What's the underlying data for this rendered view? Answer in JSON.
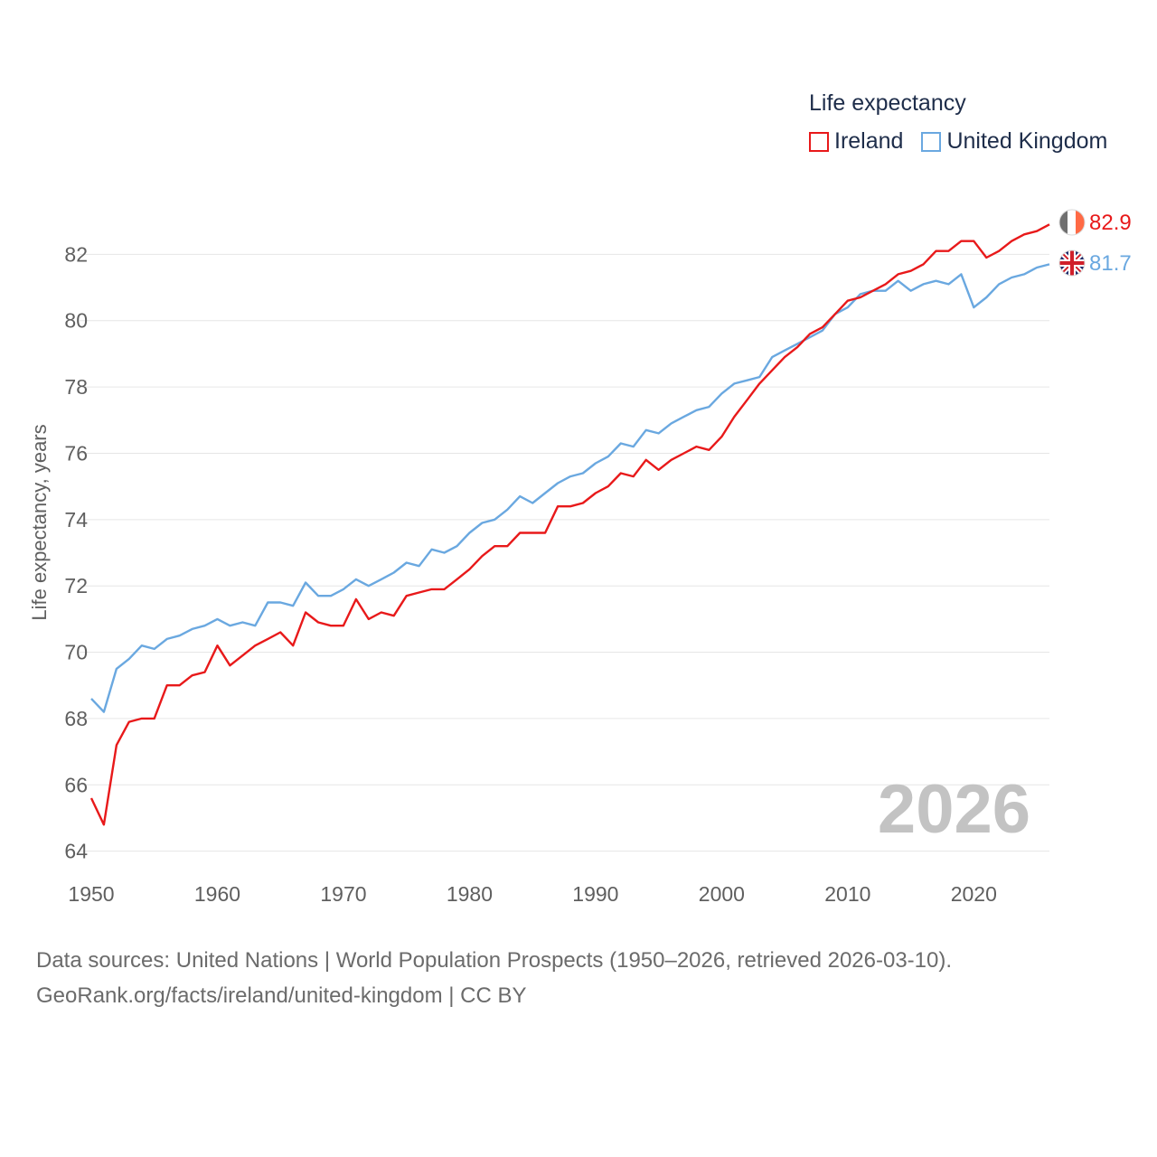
{
  "legend": {
    "title": "Life expectancy",
    "ireland_label": "Ireland",
    "uk_label": "United Kingdom"
  },
  "source": {
    "line1": "Data sources: United Nations | World Population Prospects (1950–2026, retrieved 2026-03-10).",
    "line2": "GeoRank.org/facts/ireland/united-kingdom | CC BY"
  },
  "colors": {
    "ireland": "#e8191a",
    "uk": "#6aa8e0",
    "grid": "#e6e6e6"
  },
  "chart_data": {
    "type": "line",
    "title": "Life expectancy",
    "xlabel": "",
    "ylabel": "Life expectancy, years",
    "xlim": [
      1950,
      2026
    ],
    "ylim": [
      63.5,
      83.4
    ],
    "xticks": [
      1950,
      1960,
      1970,
      1980,
      1990,
      2000,
      2010,
      2020
    ],
    "yticks": [
      64,
      66,
      68,
      70,
      72,
      74,
      76,
      78,
      80,
      82
    ],
    "year_label": "2026",
    "x": [
      1950,
      1951,
      1952,
      1953,
      1954,
      1955,
      1956,
      1957,
      1958,
      1959,
      1960,
      1961,
      1962,
      1963,
      1964,
      1965,
      1966,
      1967,
      1968,
      1969,
      1970,
      1971,
      1972,
      1973,
      1974,
      1975,
      1976,
      1977,
      1978,
      1979,
      1980,
      1981,
      1982,
      1983,
      1984,
      1985,
      1986,
      1987,
      1988,
      1989,
      1990,
      1991,
      1992,
      1993,
      1994,
      1995,
      1996,
      1997,
      1998,
      1999,
      2000,
      2001,
      2002,
      2003,
      2004,
      2005,
      2006,
      2007,
      2008,
      2009,
      2010,
      2011,
      2012,
      2013,
      2014,
      2015,
      2016,
      2017,
      2018,
      2019,
      2020,
      2021,
      2022,
      2023,
      2024,
      2025,
      2026
    ],
    "series": [
      {
        "name": "Ireland",
        "color": "#e8191a",
        "end_label": "82.9",
        "values": [
          65.6,
          64.8,
          67.2,
          67.9,
          68.0,
          68.0,
          69.0,
          69.0,
          69.3,
          69.4,
          70.2,
          69.6,
          69.9,
          70.2,
          70.4,
          70.6,
          70.2,
          71.2,
          70.9,
          70.8,
          70.8,
          71.6,
          71.0,
          71.2,
          71.1,
          71.7,
          71.8,
          71.9,
          71.9,
          72.2,
          72.5,
          72.9,
          73.2,
          73.2,
          73.6,
          73.6,
          73.6,
          74.4,
          74.4,
          74.5,
          74.8,
          75.0,
          75.4,
          75.3,
          75.8,
          75.5,
          75.8,
          76.0,
          76.2,
          76.1,
          76.5,
          77.1,
          77.6,
          78.1,
          78.5,
          78.9,
          79.2,
          79.6,
          79.8,
          80.2,
          80.6,
          80.7,
          80.9,
          81.1,
          81.4,
          81.5,
          81.7,
          82.1,
          82.1,
          82.4,
          82.4,
          81.9,
          82.1,
          82.4,
          82.6,
          82.7,
          82.9
        ]
      },
      {
        "name": "United Kingdom",
        "color": "#6aa8e0",
        "end_label": "81.7",
        "values": [
          68.6,
          68.2,
          69.5,
          69.8,
          70.2,
          70.1,
          70.4,
          70.5,
          70.7,
          70.8,
          71.0,
          70.8,
          70.9,
          70.8,
          71.5,
          71.5,
          71.4,
          72.1,
          71.7,
          71.7,
          71.9,
          72.2,
          72.0,
          72.2,
          72.4,
          72.7,
          72.6,
          73.1,
          73.0,
          73.2,
          73.6,
          73.9,
          74.0,
          74.3,
          74.7,
          74.5,
          74.8,
          75.1,
          75.3,
          75.4,
          75.7,
          75.9,
          76.3,
          76.2,
          76.7,
          76.6,
          76.9,
          77.1,
          77.3,
          77.4,
          77.8,
          78.1,
          78.2,
          78.3,
          78.9,
          79.1,
          79.3,
          79.5,
          79.7,
          80.2,
          80.4,
          80.8,
          80.9,
          80.9,
          81.2,
          80.9,
          81.1,
          81.2,
          81.1,
          81.4,
          80.4,
          80.7,
          81.1,
          81.3,
          81.4,
          81.6,
          81.7
        ]
      }
    ]
  }
}
